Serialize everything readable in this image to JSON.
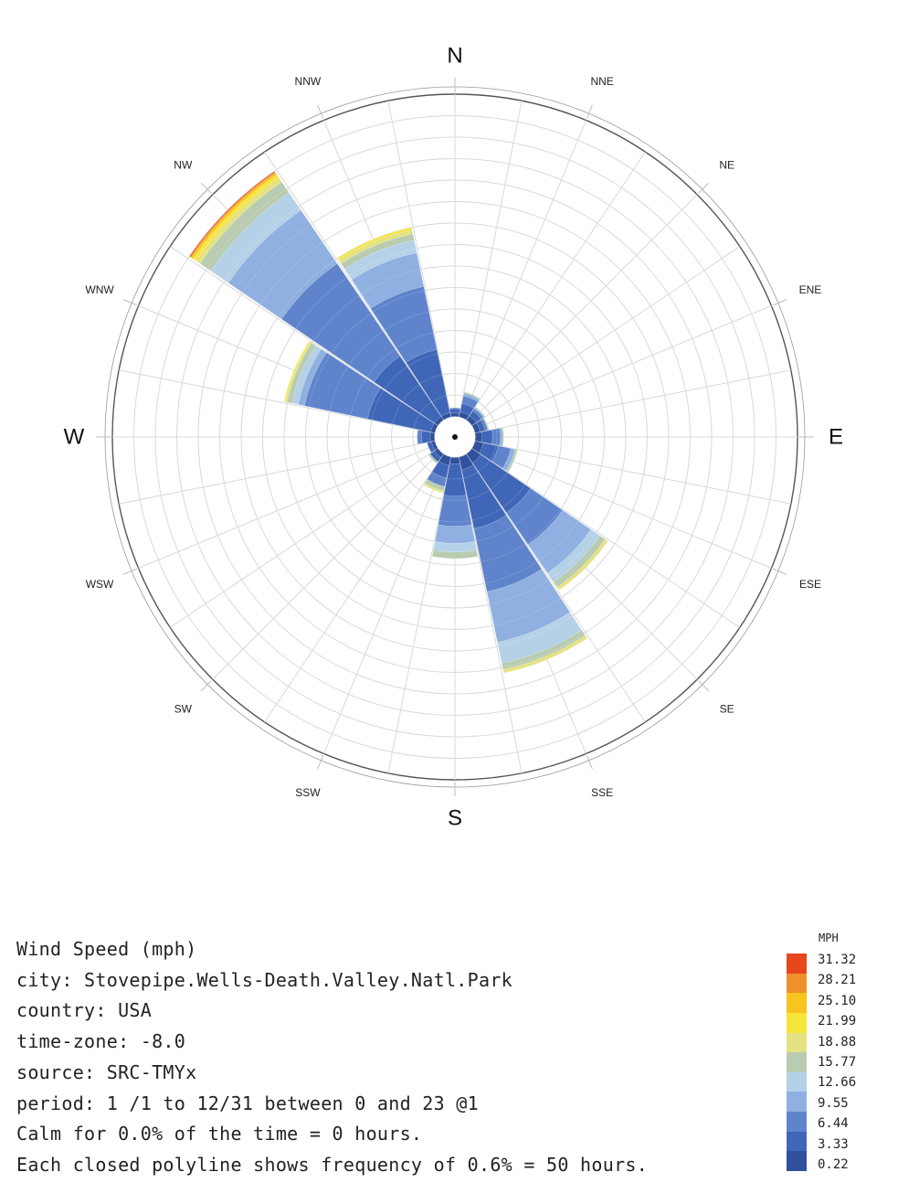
{
  "chart_data": {
    "type": "wind-rose",
    "directions": [
      "N",
      "NNE",
      "NE",
      "ENE",
      "E",
      "ESE",
      "SE",
      "SSE",
      "S",
      "SSW",
      "SW",
      "WSW",
      "W",
      "WNW",
      "NW",
      "NNW"
    ],
    "major_directions": [
      "N",
      "E",
      "S",
      "W"
    ],
    "frequency_units": "hours",
    "ring_step_hours": 50,
    "max_hours": 750,
    "speed_bins_mph": [
      0.22,
      3.33,
      6.44,
      9.55,
      12.66,
      15.77,
      18.88,
      21.99,
      25.1,
      28.21,
      31.32
    ],
    "bin_colors": [
      "#30519b",
      "#4066b8",
      "#5f84cc",
      "#8fb0e0",
      "#b5d1e8",
      "#b9ccb1",
      "#e4e282",
      "#f7e63a",
      "#f7c51e",
      "#f0902a",
      "#e8461b"
    ],
    "series": [
      {
        "direction": "N",
        "hours": [
          8,
          10,
          2,
          0,
          0,
          0,
          0,
          0,
          0,
          0,
          0
        ]
      },
      {
        "direction": "NNE",
        "hours": [
          12,
          20,
          18,
          6,
          0,
          3,
          0,
          0,
          0,
          0,
          0
        ]
      },
      {
        "direction": "NE",
        "hours": [
          12,
          14,
          6,
          3,
          0,
          2,
          0,
          0,
          0,
          0,
          0
        ]
      },
      {
        "direction": "ENE",
        "hours": [
          12,
          12,
          6,
          0,
          0,
          3,
          0,
          0,
          0,
          0,
          0
        ]
      },
      {
        "direction": "E",
        "hours": [
          15,
          25,
          18,
          5,
          0,
          3,
          0,
          0,
          0,
          0,
          0
        ]
      },
      {
        "direction": "ESE",
        "hours": [
          20,
          35,
          30,
          10,
          0,
          5,
          0,
          0,
          0,
          0,
          0
        ]
      },
      {
        "direction": "SE",
        "hours": [
          25,
          140,
          90,
          80,
          25,
          15,
          8,
          0,
          0,
          0,
          0
        ]
      },
      {
        "direction": "SSE",
        "hours": [
          30,
          140,
          150,
          120,
          50,
          15,
          8,
          0,
          0,
          0,
          0
        ]
      },
      {
        "direction": "S",
        "hours": [
          15,
          75,
          70,
          40,
          20,
          15,
          0,
          0,
          0,
          0,
          0
        ]
      },
      {
        "direction": "SSW",
        "hours": [
          20,
          30,
          20,
          0,
          0,
          10,
          5,
          0,
          0,
          0,
          0
        ]
      },
      {
        "direction": "SW",
        "hours": [
          10,
          12,
          0,
          0,
          0,
          5,
          0,
          0,
          0,
          0,
          0
        ]
      },
      {
        "direction": "WSW",
        "hours": [
          8,
          10,
          0,
          0,
          0,
          0,
          0,
          0,
          0,
          0,
          0
        ]
      },
      {
        "direction": "W",
        "hours": [
          10,
          20,
          10,
          0,
          0,
          0,
          0,
          0,
          0,
          0,
          0
        ]
      },
      {
        "direction": "WNW",
        "hours": [
          10,
          150,
          150,
          15,
          15,
          12,
          3,
          3,
          0,
          0,
          0
        ]
      },
      {
        "direction": "NW",
        "hours": [
          10,
          170,
          260,
          150,
          50,
          30,
          12,
          8,
          5,
          3,
          2
        ]
      },
      {
        "direction": "NNW",
        "hours": [
          10,
          150,
          150,
          80,
          30,
          15,
          10,
          5,
          0,
          0,
          0
        ]
      }
    ]
  },
  "legend": {
    "title": "MPH",
    "labels": [
      "31.32",
      "28.21",
      "25.10",
      "21.99",
      "18.88",
      "15.77",
      "12.66",
      "9.55",
      "6.44",
      "3.33",
      "0.22"
    ],
    "colors": [
      "#e8461b",
      "#f0902a",
      "#f7c51e",
      "#f7e63a",
      "#e4e282",
      "#b9ccb1",
      "#b5d1e8",
      "#8fb0e0",
      "#5f84cc",
      "#4066b8",
      "#30519b"
    ]
  },
  "info": {
    "line1": "Wind Speed (mph)",
    "line2": "city: Stovepipe.Wells-Death.Valley.Natl.Park",
    "line3": "country: USA",
    "line4": "time-zone: -8.0",
    "line5": "source: SRC-TMYx",
    "line6": "period: 1 /1 to 12/31 between 0 and 23 @1",
    "line7": "Calm for 0.0% of the time = 0 hours.",
    "line8": "Each closed polyline shows frequency of 0.6% = 50 hours."
  }
}
